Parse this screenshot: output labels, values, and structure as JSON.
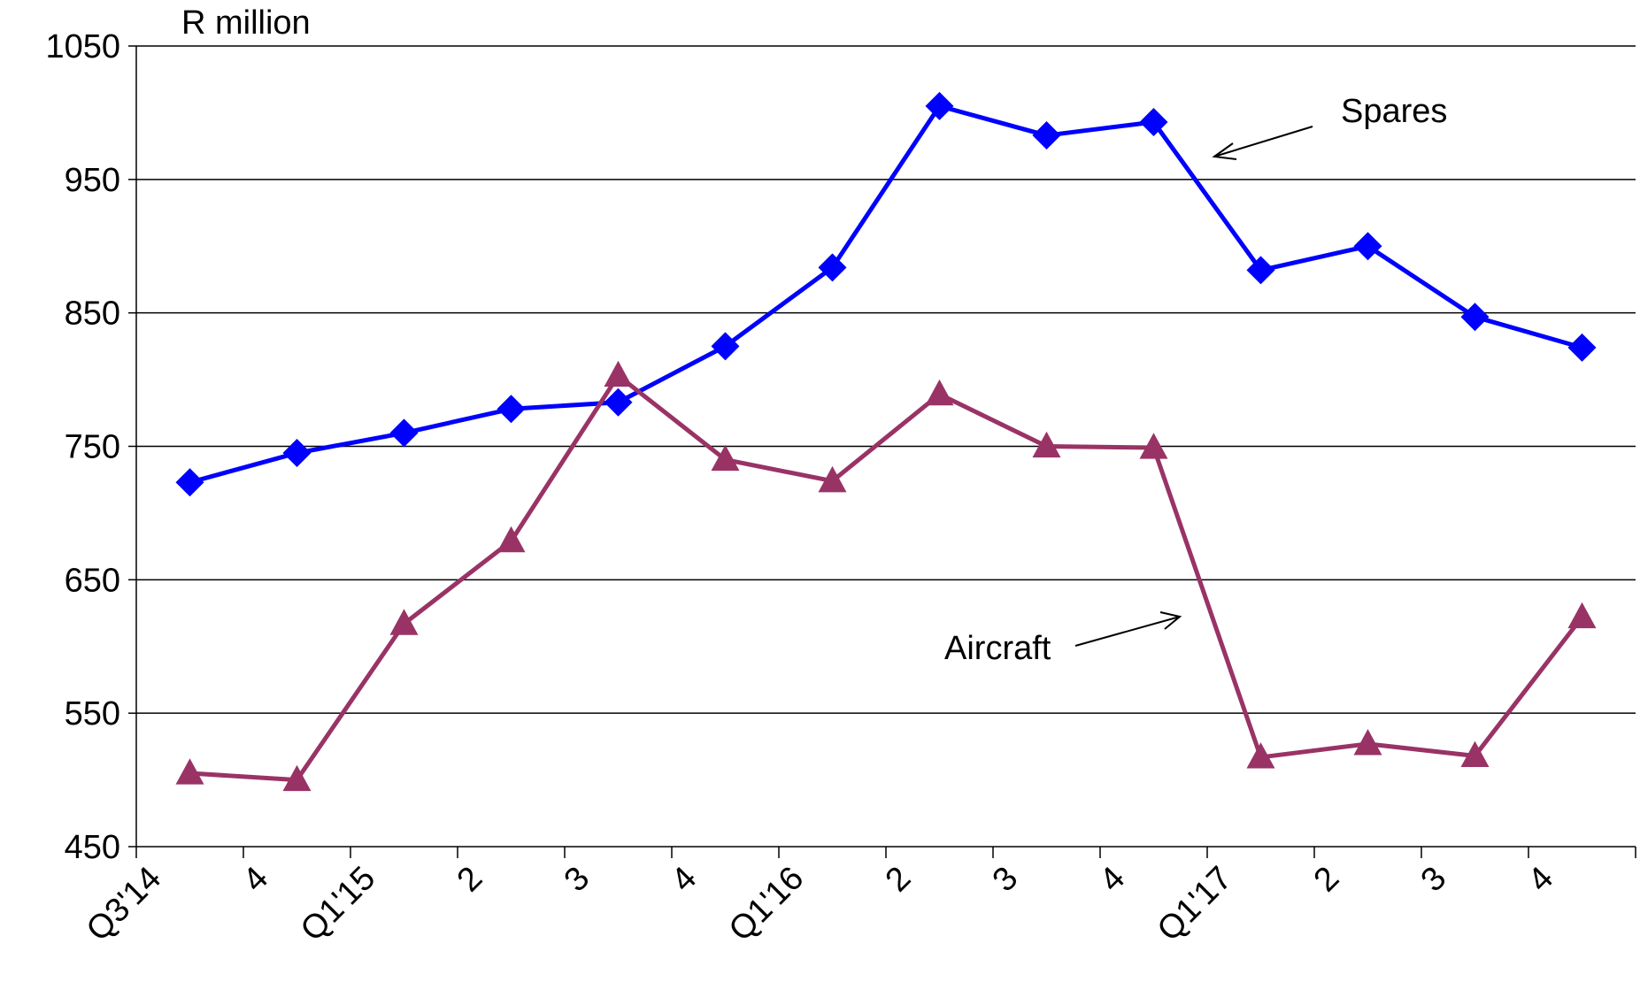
{
  "chart_data": {
    "type": "line",
    "unit_label": "R million",
    "categories": [
      "Q3'14",
      "4",
      "Q1'15",
      "2",
      "3",
      "4",
      "Q1'16",
      "2",
      "3",
      "4",
      "Q1'17",
      "2",
      "3",
      "4"
    ],
    "ylim": [
      450,
      1050
    ],
    "yticks": [
      450,
      550,
      650,
      750,
      850,
      950,
      1050
    ],
    "grid": true,
    "legend": "none",
    "series": [
      {
        "name": "Spares",
        "color": "#0000ff",
        "marker": "diamond",
        "values": [
          723,
          745,
          760,
          778,
          783,
          825,
          884,
          1005,
          983,
          993,
          882,
          900,
          847,
          824
        ]
      },
      {
        "name": "Aircraft",
        "color": "#993366",
        "marker": "triangle",
        "values": [
          505,
          500,
          617,
          679,
          803,
          740,
          724,
          789,
          750,
          749,
          517,
          527,
          518,
          622
        ]
      }
    ],
    "annotations": [
      {
        "text": "Spares",
        "series": "Spares"
      },
      {
        "text": "Aircraft",
        "series": "Aircraft"
      }
    ]
  }
}
